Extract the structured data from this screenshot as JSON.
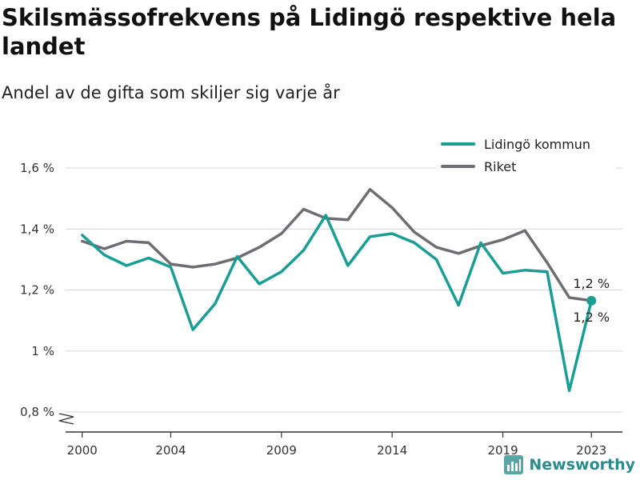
{
  "chart_data": {
    "type": "line",
    "title": "Skilsmässofrekvens på Lidingö respektive hela landet",
    "subtitle": "Andel av de gifta som skiljer sig varje år",
    "x": [
      2000,
      2001,
      2002,
      2003,
      2004,
      2005,
      2006,
      2007,
      2008,
      2009,
      2010,
      2011,
      2012,
      2013,
      2014,
      2015,
      2016,
      2017,
      2018,
      2019,
      2020,
      2021,
      2022,
      2023
    ],
    "series": [
      {
        "name": "Lidingö kommun",
        "color": "#1a9e94",
        "values": [
          1.38,
          1.315,
          1.28,
          1.305,
          1.275,
          1.07,
          1.155,
          1.31,
          1.22,
          1.26,
          1.33,
          1.445,
          1.28,
          1.375,
          1.385,
          1.355,
          1.3,
          1.15,
          1.355,
          1.255,
          1.265,
          1.26,
          0.87,
          1.165
        ]
      },
      {
        "name": "Riket",
        "color": "#6e6e72",
        "values": [
          1.36,
          1.335,
          1.36,
          1.355,
          1.285,
          1.275,
          1.285,
          1.305,
          1.34,
          1.385,
          1.465,
          1.435,
          1.43,
          1.53,
          1.47,
          1.39,
          1.34,
          1.32,
          1.345,
          1.365,
          1.395,
          1.29,
          1.175,
          1.165
        ]
      }
    ],
    "ylim": [
      0.8,
      1.6
    ],
    "y_ticks": [
      0.8,
      1.0,
      1.2,
      1.4,
      1.6
    ],
    "y_tick_labels": [
      "0,8 %",
      "1 %",
      "1,2 %",
      "1,4 %",
      "1,6 %"
    ],
    "x_ticks": [
      2000,
      2004,
      2009,
      2014,
      2019,
      2023
    ],
    "x_tick_labels": [
      "2000",
      "2004",
      "2009",
      "2014",
      "2019",
      "2023"
    ],
    "end_labels": [
      "1,2 %",
      "1,2 %"
    ],
    "legend_position": "top-right",
    "grid": true,
    "y_axis_break": true
  },
  "brand": {
    "name": "Newsworthy",
    "color": "#2c8c8c"
  }
}
